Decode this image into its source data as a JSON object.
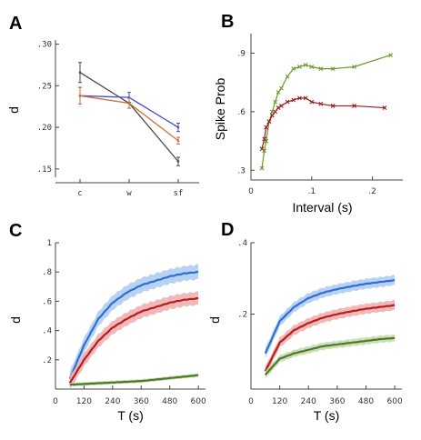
{
  "chart_data": [
    {
      "panel": "A",
      "type": "line",
      "categories": [
        "c",
        "w",
        "sf"
      ],
      "ylabel": "d",
      "yticks": [
        ".15",
        ".20",
        ".25",
        ".30"
      ],
      "ylim": [
        0.14,
        0.305
      ],
      "grid": false,
      "series": [
        {
          "color": "#4a4a4a",
          "values": [
            0.266,
            0.229,
            0.159
          ],
          "errors": [
            0.012,
            0.006,
            0.005
          ]
        },
        {
          "color": "#4b4bd1",
          "values": [
            0.238,
            0.236,
            0.2
          ],
          "errors": [
            0.01,
            0.006,
            0.005
          ]
        },
        {
          "color": "#c8703a",
          "values": [
            0.238,
            0.229,
            0.184
          ],
          "errors": [
            0.01,
            0.006,
            0.004
          ]
        }
      ]
    },
    {
      "panel": "B",
      "type": "scatter",
      "xlabel": "Interval (s)",
      "ylabel": "Spike Prob",
      "xticks": [
        "0",
        ".1",
        ".2"
      ],
      "yticks": [
        ".3",
        ".6",
        ".9"
      ],
      "xlim": [
        0,
        0.25
      ],
      "ylim": [
        0.25,
        1.0
      ],
      "grid": false,
      "series": [
        {
          "color": "#6a9a2a",
          "x": [
            0.018,
            0.022,
            0.025,
            0.03,
            0.035,
            0.04,
            0.045,
            0.05,
            0.06,
            0.07,
            0.08,
            0.09,
            0.1,
            0.115,
            0.135,
            0.17,
            0.23
          ],
          "y": [
            0.31,
            0.4,
            0.45,
            0.55,
            0.6,
            0.65,
            0.7,
            0.72,
            0.78,
            0.82,
            0.83,
            0.84,
            0.83,
            0.82,
            0.82,
            0.83,
            0.89
          ]
        },
        {
          "color": "#9a1f1f",
          "x": [
            0.018,
            0.022,
            0.025,
            0.03,
            0.035,
            0.04,
            0.045,
            0.05,
            0.06,
            0.07,
            0.08,
            0.09,
            0.1,
            0.115,
            0.135,
            0.17,
            0.22
          ],
          "y": [
            0.41,
            0.46,
            0.52,
            0.55,
            0.58,
            0.6,
            0.62,
            0.63,
            0.65,
            0.66,
            0.67,
            0.67,
            0.65,
            0.64,
            0.63,
            0.63,
            0.62
          ]
        }
      ]
    },
    {
      "panel": "C",
      "type": "area",
      "xlabel": "T (s)",
      "ylabel": "d",
      "xticks": [
        "0",
        "120",
        "240",
        "360",
        "480",
        "600"
      ],
      "yticks": [
        ".2",
        ".4",
        ".6",
        ".8",
        "1"
      ],
      "xlim": [
        0,
        630
      ],
      "ylim": [
        0,
        1.0
      ],
      "grid": false,
      "series": [
        {
          "color": "#2a6fd6",
          "band": "#b3cdf0",
          "x": [
            60,
            120,
            180,
            240,
            300,
            360,
            420,
            480,
            540,
            600
          ],
          "values": [
            0.07,
            0.3,
            0.48,
            0.59,
            0.66,
            0.71,
            0.74,
            0.77,
            0.79,
            0.8
          ],
          "bandwidth": 0.05
        },
        {
          "color": "#b81c1c",
          "band": "#eeb1b1",
          "x": [
            60,
            120,
            180,
            240,
            300,
            360,
            420,
            480,
            540,
            600
          ],
          "values": [
            0.04,
            0.2,
            0.33,
            0.42,
            0.48,
            0.53,
            0.56,
            0.59,
            0.61,
            0.62
          ],
          "bandwidth": 0.045
        },
        {
          "color": "#4d7a2a",
          "band": "#c9dab0",
          "x": [
            60,
            120,
            180,
            240,
            300,
            360,
            420,
            480,
            540,
            600
          ],
          "values": [
            0.03,
            0.035,
            0.04,
            0.045,
            0.05,
            0.055,
            0.065,
            0.075,
            0.085,
            0.095
          ],
          "bandwidth": 0.012
        }
      ]
    },
    {
      "panel": "D",
      "type": "area",
      "xlabel": "T (s)",
      "ylabel": "d",
      "xticks": [
        "0",
        "120",
        "240",
        "360",
        "480",
        "600"
      ],
      "yticks": [
        ".2",
        ".4"
      ],
      "xlim": [
        0,
        630
      ],
      "ylim": [
        -0.01,
        0.4
      ],
      "grid": false,
      "series": [
        {
          "color": "#2a6fd6",
          "band": "#b3cdf0",
          "x": [
            60,
            120,
            180,
            240,
            300,
            360,
            420,
            480,
            540,
            600
          ],
          "values": [
            0.09,
            0.18,
            0.22,
            0.245,
            0.26,
            0.27,
            0.278,
            0.285,
            0.29,
            0.295
          ],
          "bandwidth": 0.014
        },
        {
          "color": "#b81c1c",
          "band": "#eeb1b1",
          "x": [
            60,
            120,
            180,
            240,
            300,
            360,
            420,
            480,
            540,
            600
          ],
          "values": [
            0.04,
            0.12,
            0.155,
            0.175,
            0.19,
            0.2,
            0.208,
            0.215,
            0.22,
            0.225
          ],
          "bandwidth": 0.014
        },
        {
          "color": "#4d7a2a",
          "band": "#c9dab0",
          "x": [
            60,
            120,
            180,
            240,
            300,
            360,
            420,
            480,
            540,
            600
          ],
          "values": [
            0.03,
            0.075,
            0.09,
            0.1,
            0.11,
            0.115,
            0.12,
            0.125,
            0.13,
            0.133
          ],
          "bandwidth": 0.01
        }
      ]
    }
  ],
  "panels": {
    "A": {
      "letter": "A"
    },
    "B": {
      "letter": "B"
    },
    "C": {
      "letter": "C"
    },
    "D": {
      "letter": "D"
    }
  }
}
